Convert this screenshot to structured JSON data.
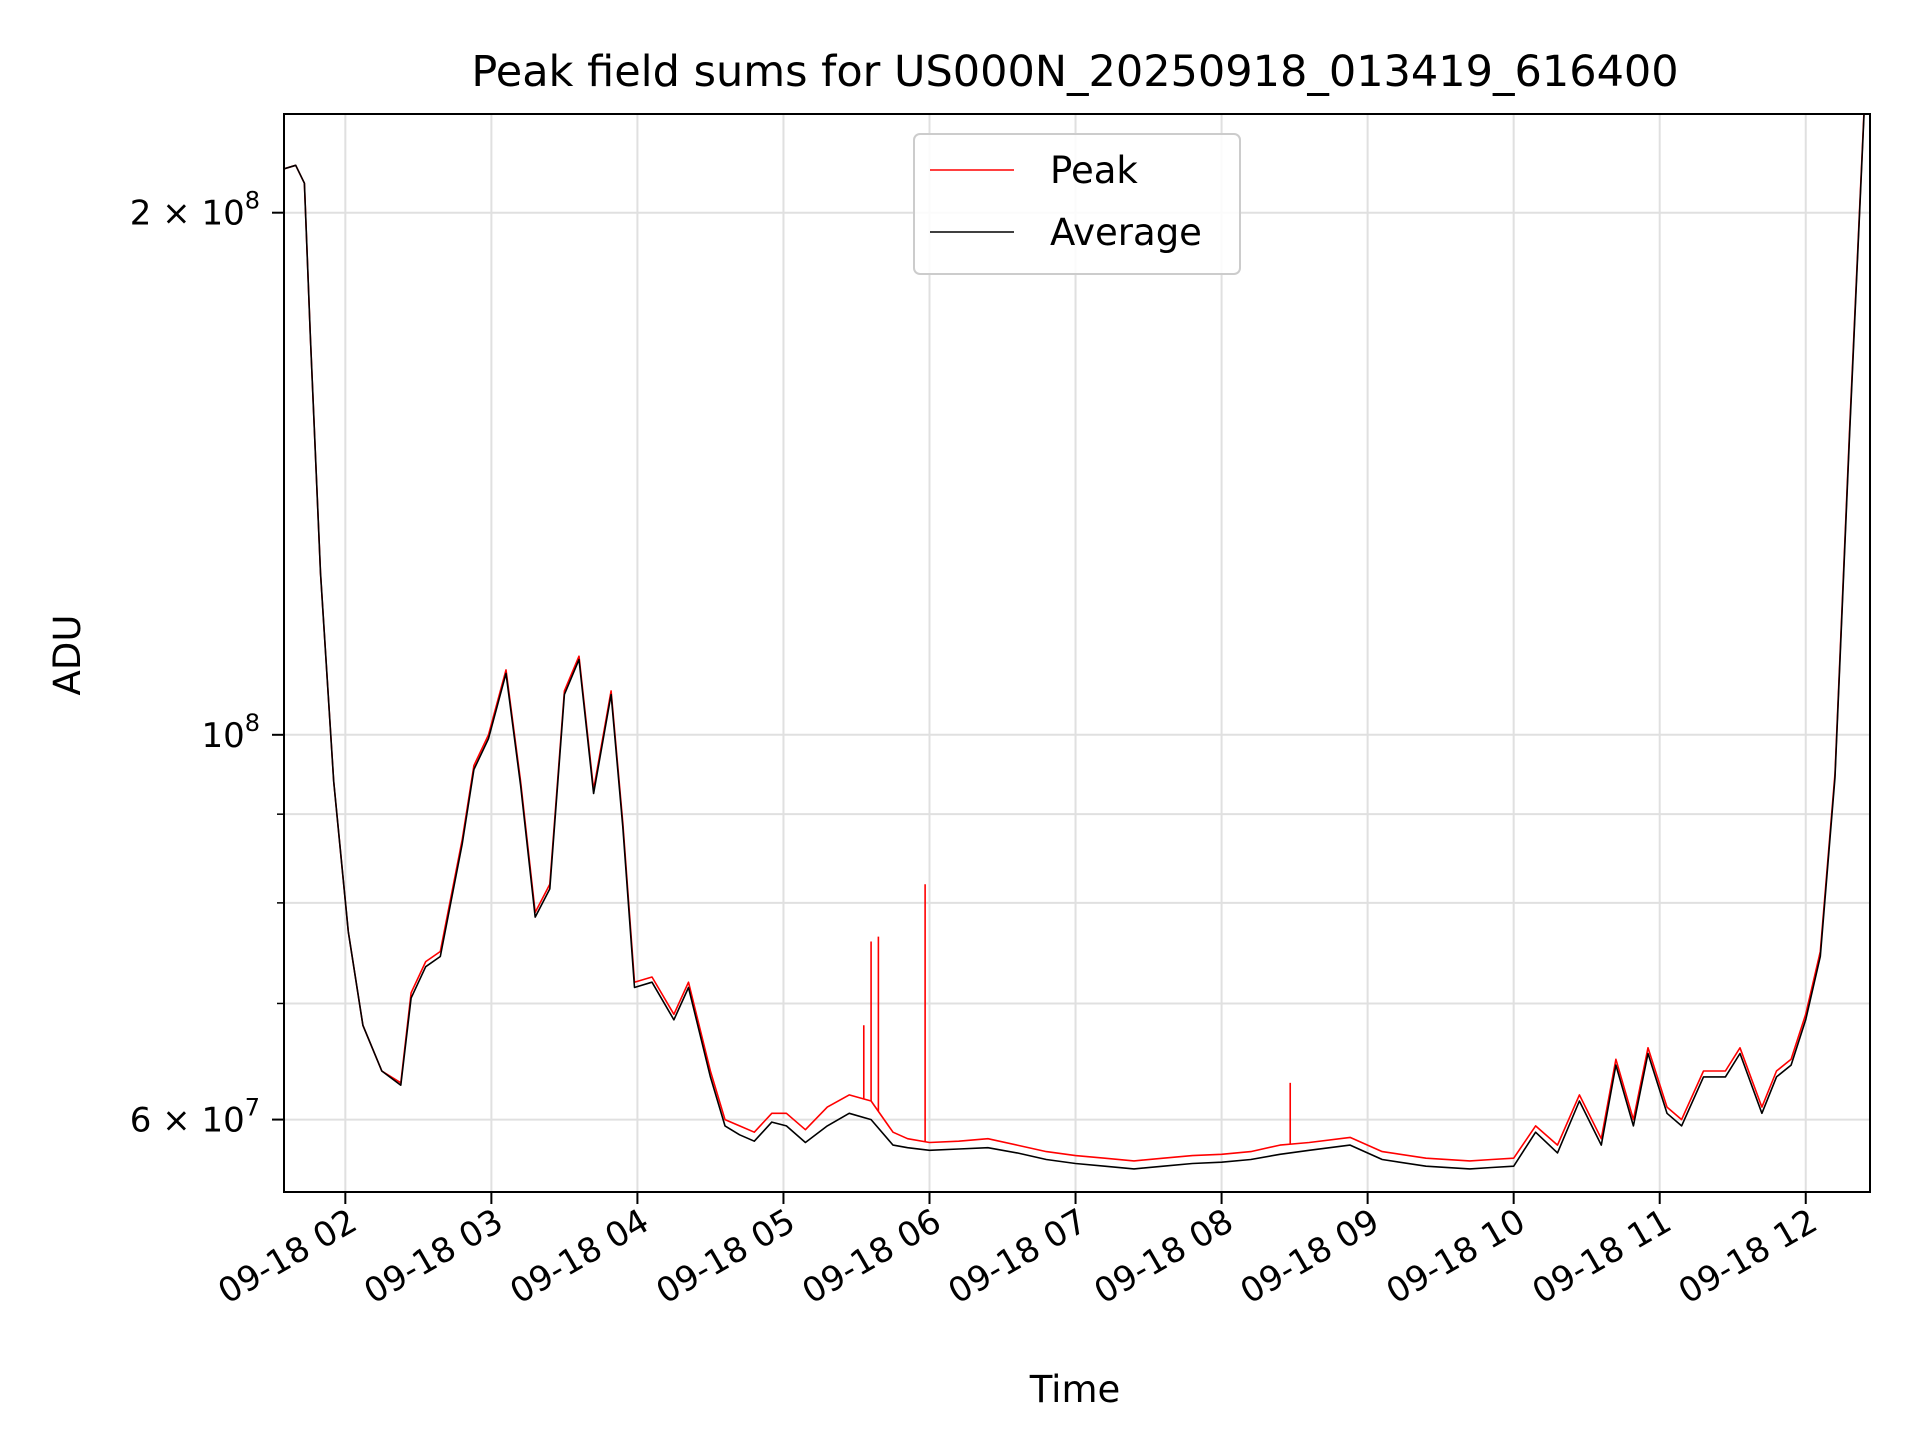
{
  "chart_data": {
    "type": "line",
    "title": "Peak field sums for US000N_20250918_013419_616400",
    "xlabel": "Time",
    "ylabel": "ADU",
    "yscale": "log",
    "grid": true,
    "legend_position": "top-center",
    "xlim": [
      1.58,
      12.44
    ],
    "ylim": [
      54500000,
      228000000
    ],
    "x_ticks": [
      2,
      3,
      4,
      5,
      6,
      7,
      8,
      9,
      10,
      11,
      12
    ],
    "x_tick_labels": [
      "09-18 02",
      "09-18 03",
      "09-18 04",
      "09-18 05",
      "09-18 06",
      "09-18 07",
      "09-18 08",
      "09-18 09",
      "09-18 10",
      "09-18 11",
      "09-18 12"
    ],
    "y_major_ticks": [
      {
        "value": 60000000,
        "base": "6 × 10",
        "exp": "7"
      },
      {
        "value": 100000000,
        "base": "10",
        "exp": "8"
      },
      {
        "value": 200000000,
        "base": "2 × 10",
        "exp": "8"
      }
    ],
    "y_minor_ticks": [
      70000000,
      80000000,
      90000000
    ],
    "series": [
      {
        "name": "Peak",
        "color": "#ff0000",
        "x": [
          1.58,
          1.66,
          1.72,
          1.76,
          1.83,
          1.92,
          2.02,
          2.12,
          2.25,
          2.38,
          2.45,
          2.55,
          2.65,
          2.8,
          2.88,
          2.98,
          3.1,
          3.2,
          3.3,
          3.4,
          3.5,
          3.6,
          3.7,
          3.82,
          3.9,
          3.98,
          4.1,
          4.25,
          4.35,
          4.5,
          4.6,
          4.7,
          4.8,
          4.92,
          5.02,
          5.15,
          5.3,
          5.45,
          5.6,
          5.75,
          5.85,
          6.0,
          6.2,
          6.4,
          6.6,
          6.8,
          7.0,
          7.2,
          7.4,
          7.6,
          7.8,
          8.0,
          8.2,
          8.4,
          8.6,
          8.88,
          9.1,
          9.4,
          9.7,
          9.85,
          10.0,
          10.15,
          10.3,
          10.45,
          10.6,
          10.7,
          10.82,
          10.92,
          11.05,
          11.15,
          11.3,
          11.45,
          11.55,
          11.7,
          11.8,
          11.9,
          12.0,
          12.1,
          12.2,
          12.3,
          12.4
        ],
        "y": [
          212000000,
          213000000,
          208000000,
          170000000,
          124000000,
          94000000,
          77000000,
          68000000,
          64000000,
          63000000,
          71000000,
          74000000,
          75000000,
          87000000,
          96000000,
          100000000,
          109000000,
          94000000,
          79000000,
          82000000,
          106000000,
          111000000,
          93000000,
          106000000,
          89000000,
          72000000,
          72500000,
          69000000,
          72000000,
          64000000,
          60000000,
          59500000,
          59000000,
          60500000,
          60500000,
          59200000,
          61000000,
          62000000,
          61500000,
          59000000,
          58500000,
          58200000,
          58300000,
          58500000,
          58000000,
          57500000,
          57200000,
          57000000,
          56800000,
          57000000,
          57200000,
          57300000,
          57500000,
          58000000,
          58200000,
          58600000,
          57500000,
          57000000,
          56800000,
          56900000,
          57000000,
          59500000,
          58000000,
          62000000,
          58500000,
          65000000,
          60000000,
          66000000,
          61000000,
          60000000,
          64000000,
          64000000,
          66000000,
          61000000,
          64000000,
          65000000,
          69000000,
          75000000,
          95000000,
          150000000,
          230000000
        ],
        "spikes": [
          {
            "x": 5.55,
            "y": 68000000
          },
          {
            "x": 5.6,
            "y": 76000000
          },
          {
            "x": 5.65,
            "y": 76500000
          },
          {
            "x": 5.97,
            "y": 82000000
          },
          {
            "x": 8.47,
            "y": 63000000
          }
        ]
      },
      {
        "name": "Average",
        "color": "#000000",
        "x": [
          1.58,
          1.66,
          1.72,
          1.76,
          1.83,
          1.92,
          2.02,
          2.12,
          2.25,
          2.38,
          2.45,
          2.55,
          2.65,
          2.8,
          2.88,
          2.98,
          3.1,
          3.2,
          3.3,
          3.4,
          3.5,
          3.6,
          3.7,
          3.82,
          3.9,
          3.98,
          4.1,
          4.25,
          4.35,
          4.5,
          4.6,
          4.7,
          4.8,
          4.92,
          5.02,
          5.15,
          5.3,
          5.45,
          5.6,
          5.75,
          5.85,
          6.0,
          6.2,
          6.4,
          6.6,
          6.8,
          7.0,
          7.2,
          7.4,
          7.6,
          7.8,
          8.0,
          8.2,
          8.4,
          8.6,
          8.88,
          9.1,
          9.4,
          9.7,
          9.85,
          10.0,
          10.15,
          10.3,
          10.45,
          10.6,
          10.7,
          10.82,
          10.92,
          11.05,
          11.15,
          11.3,
          11.45,
          11.55,
          11.7,
          11.8,
          11.9,
          12.0,
          12.1,
          12.2,
          12.3,
          12.4
        ],
        "y": [
          212000000,
          213000000,
          208000000,
          170000000,
          124000000,
          94000000,
          77000000,
          68000000,
          64000000,
          62800000,
          70500000,
          73500000,
          74500000,
          86500000,
          95500000,
          99500000,
          108500000,
          93500000,
          78500000,
          81500000,
          105500000,
          110500000,
          92500000,
          105500000,
          88500000,
          71500000,
          72000000,
          68500000,
          71500000,
          63500000,
          59500000,
          58800000,
          58300000,
          59800000,
          59500000,
          58200000,
          59500000,
          60500000,
          60000000,
          58000000,
          57800000,
          57600000,
          57700000,
          57800000,
          57400000,
          56900000,
          56600000,
          56400000,
          56200000,
          56400000,
          56600000,
          56700000,
          56900000,
          57300000,
          57600000,
          58000000,
          56900000,
          56400000,
          56200000,
          56300000,
          56400000,
          59000000,
          57400000,
          61500000,
          58000000,
          64500000,
          59500000,
          65500000,
          60500000,
          59500000,
          63500000,
          63500000,
          65500000,
          60500000,
          63500000,
          64500000,
          68500000,
          74500000,
          94500000,
          149000000,
          229000000
        ]
      }
    ]
  }
}
